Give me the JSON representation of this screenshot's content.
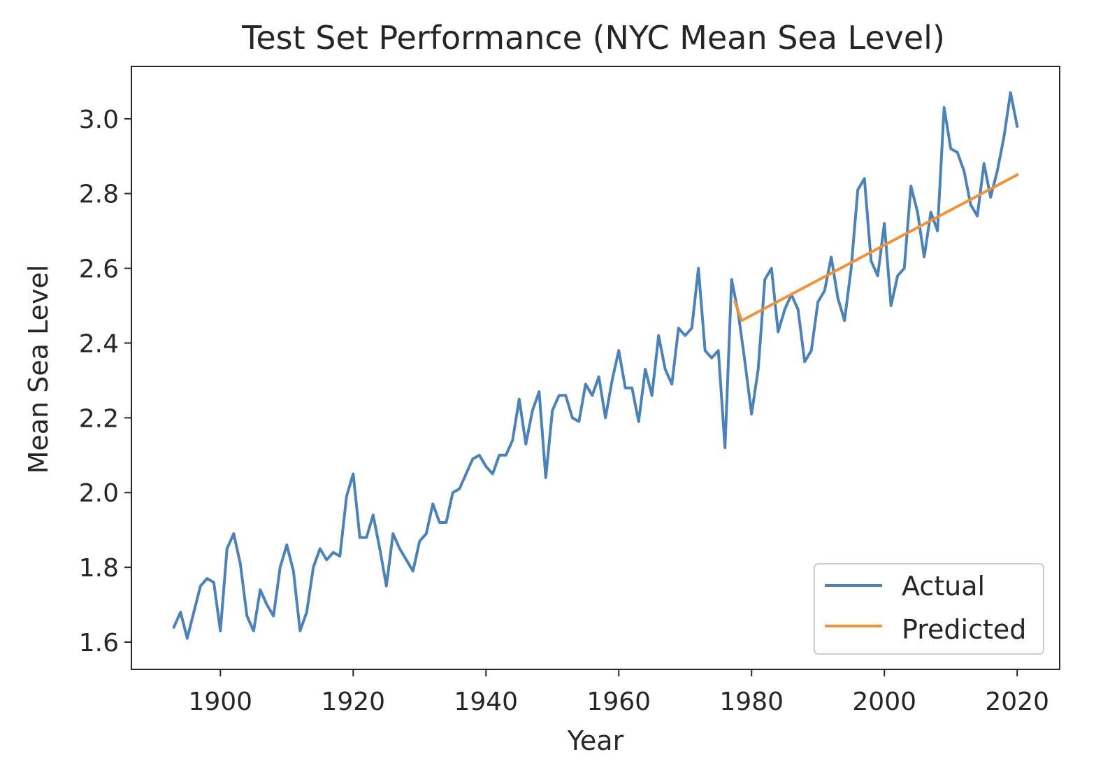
{
  "chart_data": {
    "type": "line",
    "title": "Test Set Performance (NYC Mean Sea Level)",
    "xlabel": "Year",
    "ylabel": "Mean Sea Level",
    "xlim": [
      1886.6,
      2026.4
    ],
    "ylim": [
      1.527,
      3.14
    ],
    "xticks": [
      1900,
      1920,
      1940,
      1960,
      1980,
      2000,
      2020
    ],
    "yticks": [
      1.6,
      1.8,
      2.0,
      2.2,
      2.4,
      2.6,
      2.8,
      3.0
    ],
    "grid": false,
    "legend": {
      "position": "lower-right"
    },
    "series": [
      {
        "name": "Actual",
        "color": "#4b82b8",
        "x": [
          1893,
          1894,
          1895,
          1896,
          1897,
          1898,
          1899,
          1900,
          1901,
          1902,
          1903,
          1904,
          1905,
          1906,
          1907,
          1908,
          1909,
          1910,
          1911,
          1912,
          1913,
          1914,
          1915,
          1916,
          1917,
          1918,
          1919,
          1920,
          1921,
          1922,
          1923,
          1924,
          1925,
          1926,
          1927,
          1928,
          1929,
          1930,
          1931,
          1932,
          1933,
          1934,
          1935,
          1936,
          1937,
          1938,
          1939,
          1940,
          1941,
          1942,
          1943,
          1944,
          1945,
          1946,
          1947,
          1948,
          1949,
          1950,
          1951,
          1952,
          1953,
          1954,
          1955,
          1956,
          1957,
          1958,
          1959,
          1960,
          1961,
          1962,
          1963,
          1964,
          1965,
          1966,
          1967,
          1968,
          1969,
          1970,
          1971,
          1972,
          1973,
          1974,
          1975,
          1976,
          1977,
          1978,
          1979,
          1980,
          1981,
          1982,
          1983,
          1984,
          1985,
          1986,
          1987,
          1988,
          1989,
          1990,
          1991,
          1992,
          1993,
          1994,
          1995,
          1996,
          1997,
          1998,
          1999,
          2000,
          2001,
          2002,
          2003,
          2004,
          2005,
          2006,
          2007,
          2008,
          2009,
          2010,
          2011,
          2012,
          2013,
          2014,
          2015,
          2016,
          2017,
          2018,
          2019,
          2020
        ],
        "y": [
          1.64,
          1.68,
          1.61,
          1.68,
          1.75,
          1.77,
          1.76,
          1.63,
          1.85,
          1.89,
          1.81,
          1.67,
          1.63,
          1.74,
          1.7,
          1.67,
          1.8,
          1.86,
          1.79,
          1.63,
          1.68,
          1.8,
          1.85,
          1.82,
          1.84,
          1.83,
          1.99,
          2.05,
          1.88,
          1.88,
          1.94,
          1.85,
          1.75,
          1.89,
          1.85,
          1.82,
          1.79,
          1.87,
          1.89,
          1.97,
          1.92,
          1.92,
          2.0,
          2.01,
          2.05,
          2.09,
          2.1,
          2.07,
          2.05,
          2.1,
          2.1,
          2.14,
          2.25,
          2.13,
          2.22,
          2.27,
          2.04,
          2.22,
          2.26,
          2.26,
          2.2,
          2.19,
          2.29,
          2.26,
          2.31,
          2.2,
          2.3,
          2.38,
          2.28,
          2.28,
          2.19,
          2.33,
          2.26,
          2.42,
          2.33,
          2.29,
          2.44,
          2.42,
          2.44,
          2.6,
          2.38,
          2.36,
          2.38,
          2.12,
          2.57,
          2.48,
          2.35,
          2.21,
          2.33,
          2.57,
          2.6,
          2.43,
          2.49,
          2.53,
          2.49,
          2.35,
          2.38,
          2.51,
          2.54,
          2.63,
          2.52,
          2.46,
          2.6,
          2.81,
          2.84,
          2.62,
          2.58,
          2.72,
          2.5,
          2.58,
          2.6,
          2.82,
          2.75,
          2.63,
          2.75,
          2.7,
          3.03,
          2.92,
          2.91,
          2.86,
          2.77,
          2.74,
          2.88,
          2.79,
          2.86,
          2.95,
          3.07,
          2.98
        ]
      },
      {
        "name": "Predicted",
        "color": "#f0923c",
        "x": [
          1977.5,
          1978.5,
          2020
        ],
        "y": [
          2.51,
          2.46,
          2.85
        ]
      }
    ]
  }
}
